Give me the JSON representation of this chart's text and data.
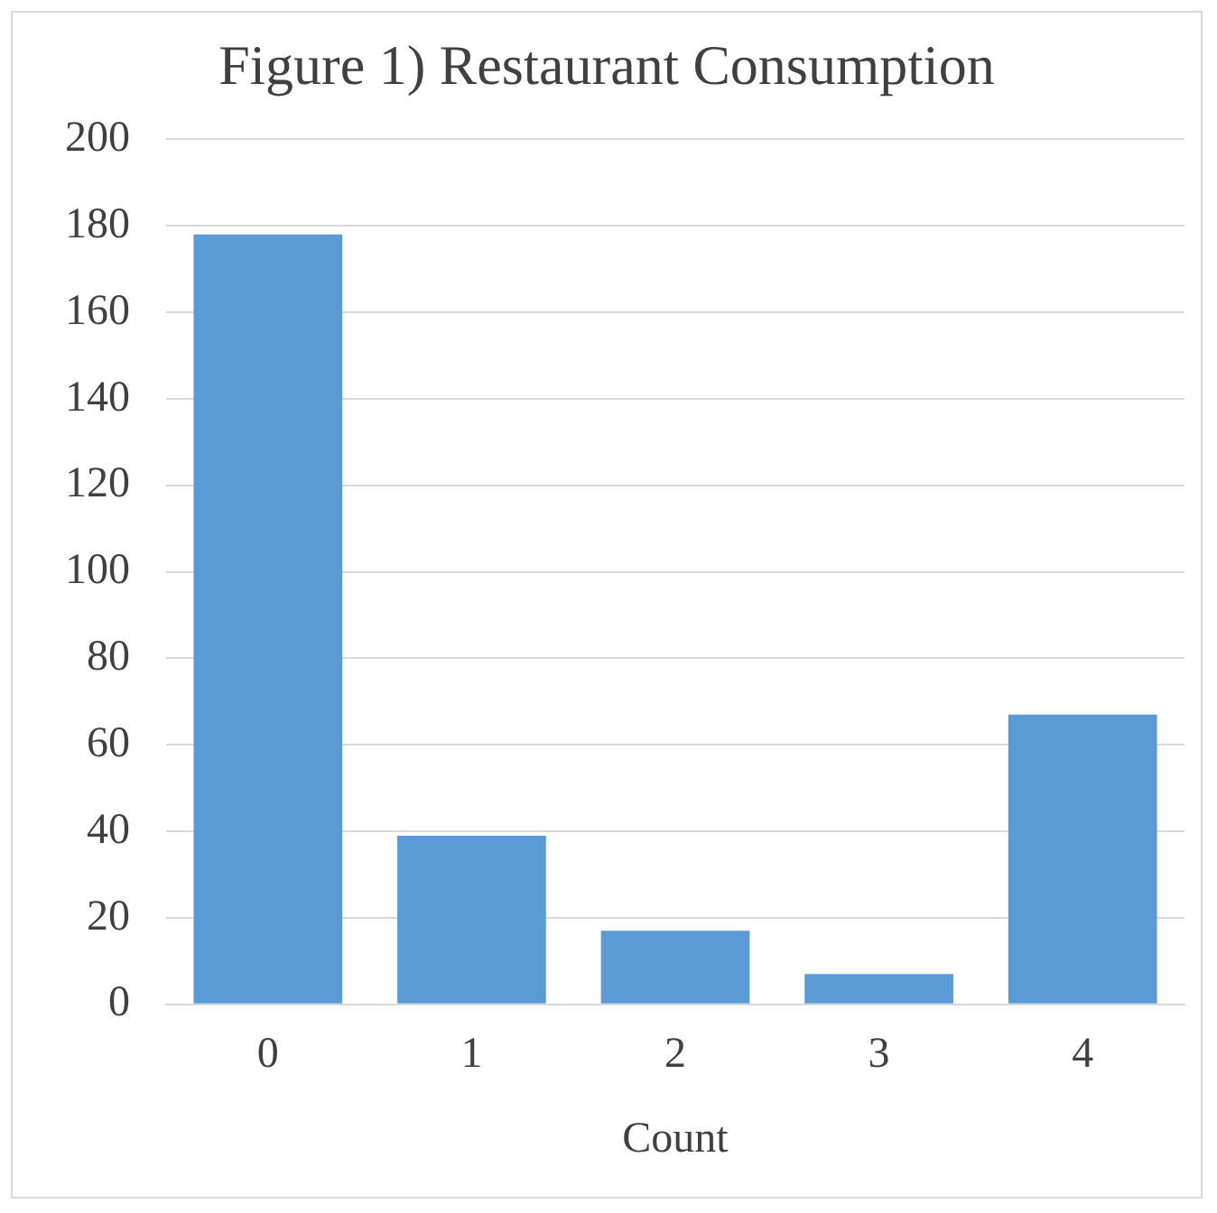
{
  "chart_data": {
    "type": "bar",
    "title": "Figure 1) Restaurant Consumption",
    "xlabel": "Count",
    "categories": [
      "0",
      "1",
      "2",
      "3",
      "4"
    ],
    "values": [
      178,
      39,
      17,
      7,
      67
    ],
    "color": "#5b9bd5",
    "ylim": [
      0,
      200
    ],
    "yticks": [
      0,
      20,
      40,
      60,
      80,
      100,
      120,
      140,
      160,
      180,
      200
    ],
    "grid": "y"
  }
}
